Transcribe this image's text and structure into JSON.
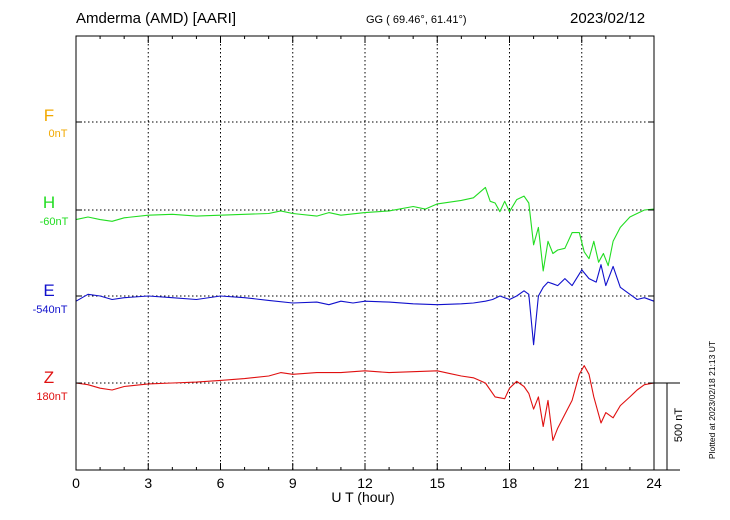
{
  "header": {
    "station": "Amderma (AMD)  [AARI]",
    "coords": "GG ( 69.46°,  61.41°)",
    "date": "2023/02/12"
  },
  "components": [
    {
      "label": "F",
      "baseline": "0nT",
      "color": "#f2a900"
    },
    {
      "label": "H",
      "baseline": "-60nT",
      "color": "#22dd22"
    },
    {
      "label": "E",
      "baseline": "-540nT",
      "color": "#1010cc"
    },
    {
      "label": "Z",
      "baseline": "180nT",
      "color": "#e01010"
    }
  ],
  "x_axis_label": "U T (hour)",
  "scale_label": "500 nT",
  "plotted_note": "Plotted at 2023/02/18 21:13 UT",
  "chart_data": {
    "type": "line",
    "title": "Amderma (AMD)  [AARI]",
    "xlabel": "U T (hour)",
    "xlim": [
      0,
      24
    ],
    "xticks": [
      "0",
      "3",
      "6",
      "9",
      "12",
      "15",
      "18",
      "21",
      "24"
    ],
    "vertical_grid_hours": [
      3,
      6,
      9,
      12,
      15,
      18,
      21
    ],
    "grid": true,
    "scale_bar_nT": 500,
    "series": [
      {
        "name": "H",
        "baseline_nT": -60,
        "color": "#22dd22",
        "x": [
          0,
          0.5,
          1.0,
          1.5,
          2.0,
          3.0,
          4.0,
          5.0,
          6.0,
          7.0,
          8.0,
          8.5,
          9.0,
          10.0,
          10.5,
          11.0,
          12.0,
          13.0,
          14.0,
          14.5,
          15.0,
          15.5,
          16.0,
          16.5,
          17.0,
          17.2,
          17.4,
          17.6,
          17.8,
          18.0,
          18.3,
          18.6,
          18.8,
          19.0,
          19.2,
          19.4,
          19.6,
          19.8,
          20.0,
          20.3,
          20.6,
          20.9,
          21.1,
          21.3,
          21.5,
          21.7,
          21.9,
          22.1,
          22.3,
          22.6,
          23.0,
          23.3,
          23.6,
          24.0
        ],
        "y": [
          -55,
          -40,
          -55,
          -65,
          -45,
          -30,
          -25,
          -35,
          -30,
          -25,
          -20,
          -5,
          -20,
          -35,
          -15,
          -30,
          -15,
          -5,
          20,
          5,
          35,
          45,
          55,
          70,
          130,
          50,
          40,
          -10,
          50,
          -10,
          60,
          80,
          40,
          -200,
          -100,
          -350,
          -180,
          -250,
          -230,
          -220,
          -130,
          -130,
          -240,
          -280,
          -180,
          -300,
          -250,
          -320,
          -180,
          -100,
          -40,
          -20,
          0,
          5
        ]
      },
      {
        "name": "E",
        "baseline_nT": -540,
        "color": "#1010cc",
        "x": [
          0,
          0.5,
          1.0,
          1.5,
          2.0,
          3.0,
          4.0,
          5.0,
          6.0,
          7.0,
          8.0,
          9.0,
          10.0,
          10.5,
          11.0,
          11.5,
          12.0,
          13.0,
          14.0,
          15.0,
          16.0,
          16.5,
          17.0,
          17.3,
          17.6,
          18.0,
          18.3,
          18.6,
          18.8,
          19.0,
          19.2,
          19.4,
          19.6,
          19.8,
          20.0,
          20.3,
          20.6,
          21.0,
          21.3,
          21.6,
          21.8,
          22.0,
          22.3,
          22.6,
          23.0,
          23.3,
          23.6,
          24.0
        ],
        "y": [
          -30,
          10,
          0,
          -20,
          -10,
          0,
          -10,
          -20,
          0,
          -10,
          -25,
          -40,
          -35,
          -50,
          -30,
          -40,
          -30,
          -35,
          -45,
          -50,
          -45,
          -40,
          -30,
          -20,
          0,
          -20,
          0,
          30,
          10,
          -280,
          0,
          50,
          80,
          70,
          60,
          100,
          60,
          150,
          100,
          80,
          180,
          60,
          170,
          50,
          10,
          -20,
          -10,
          -30
        ]
      },
      {
        "name": "Z",
        "baseline_nT": 180,
        "color": "#e01010",
        "x": [
          0,
          0.5,
          1.0,
          1.5,
          2.0,
          3.0,
          4.0,
          5.0,
          6.0,
          7.0,
          8.0,
          8.5,
          9.0,
          10.0,
          11.0,
          12.0,
          13.0,
          14.0,
          15.0,
          15.5,
          16.0,
          16.5,
          17.0,
          17.4,
          17.8,
          18.0,
          18.3,
          18.6,
          18.8,
          19.0,
          19.2,
          19.4,
          19.6,
          19.8,
          20.0,
          20.3,
          20.6,
          20.9,
          21.1,
          21.3,
          21.5,
          21.8,
          22.0,
          22.3,
          22.6,
          23.0,
          23.3,
          23.6,
          24.0
        ],
        "y": [
          0,
          -10,
          -30,
          -40,
          -20,
          -5,
          0,
          5,
          15,
          25,
          40,
          60,
          50,
          60,
          60,
          70,
          60,
          65,
          70,
          55,
          40,
          30,
          0,
          -80,
          -90,
          -30,
          10,
          -20,
          -60,
          -150,
          -80,
          -250,
          -100,
          -330,
          -260,
          -180,
          -100,
          50,
          100,
          50,
          -80,
          -230,
          -170,
          -200,
          -130,
          -80,
          -40,
          -10,
          0
        ]
      }
    ]
  }
}
